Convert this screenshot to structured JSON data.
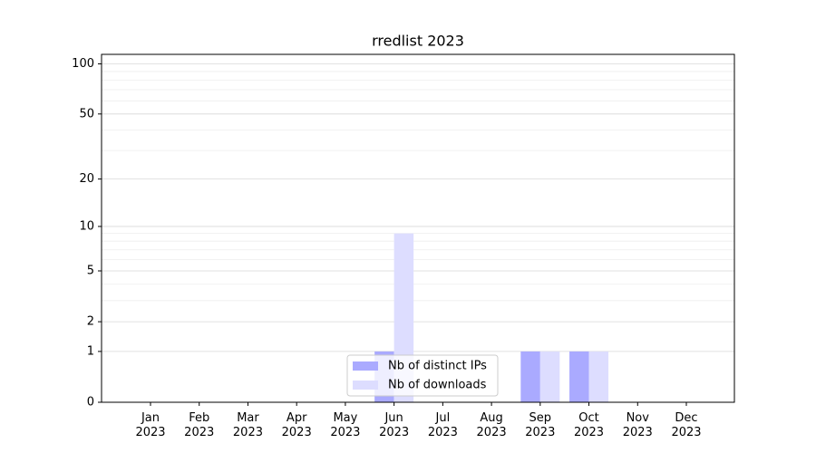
{
  "chart_data": {
    "type": "bar",
    "title": "rredlist 2023",
    "categories": [
      "Jan\n2023",
      "Feb\n2023",
      "Mar\n2023",
      "Apr\n2023",
      "May\n2023",
      "Jun\n2023",
      "Jul\n2023",
      "Aug\n2023",
      "Sep\n2023",
      "Oct\n2023",
      "Nov\n2023",
      "Dec\n2023"
    ],
    "series": [
      {
        "name": "Nb of distinct IPs",
        "color": "#aaaaff",
        "values": [
          0,
          0,
          0,
          0,
          0,
          1,
          0,
          0,
          1,
          1,
          0,
          0
        ]
      },
      {
        "name": "Nb of downloads",
        "color": "#ddddff",
        "values": [
          0,
          0,
          0,
          0,
          0,
          9,
          0,
          0,
          1,
          1,
          0,
          0
        ]
      }
    ],
    "yscale": "log1p",
    "ylim": [
      0,
      114
    ],
    "yticks": [
      0,
      1,
      2,
      5,
      10,
      20,
      50,
      100
    ],
    "yminorticks": [
      3,
      4,
      6,
      7,
      8,
      9,
      30,
      40,
      60,
      70,
      80,
      90
    ],
    "grid": true,
    "legend": "lower center"
  }
}
